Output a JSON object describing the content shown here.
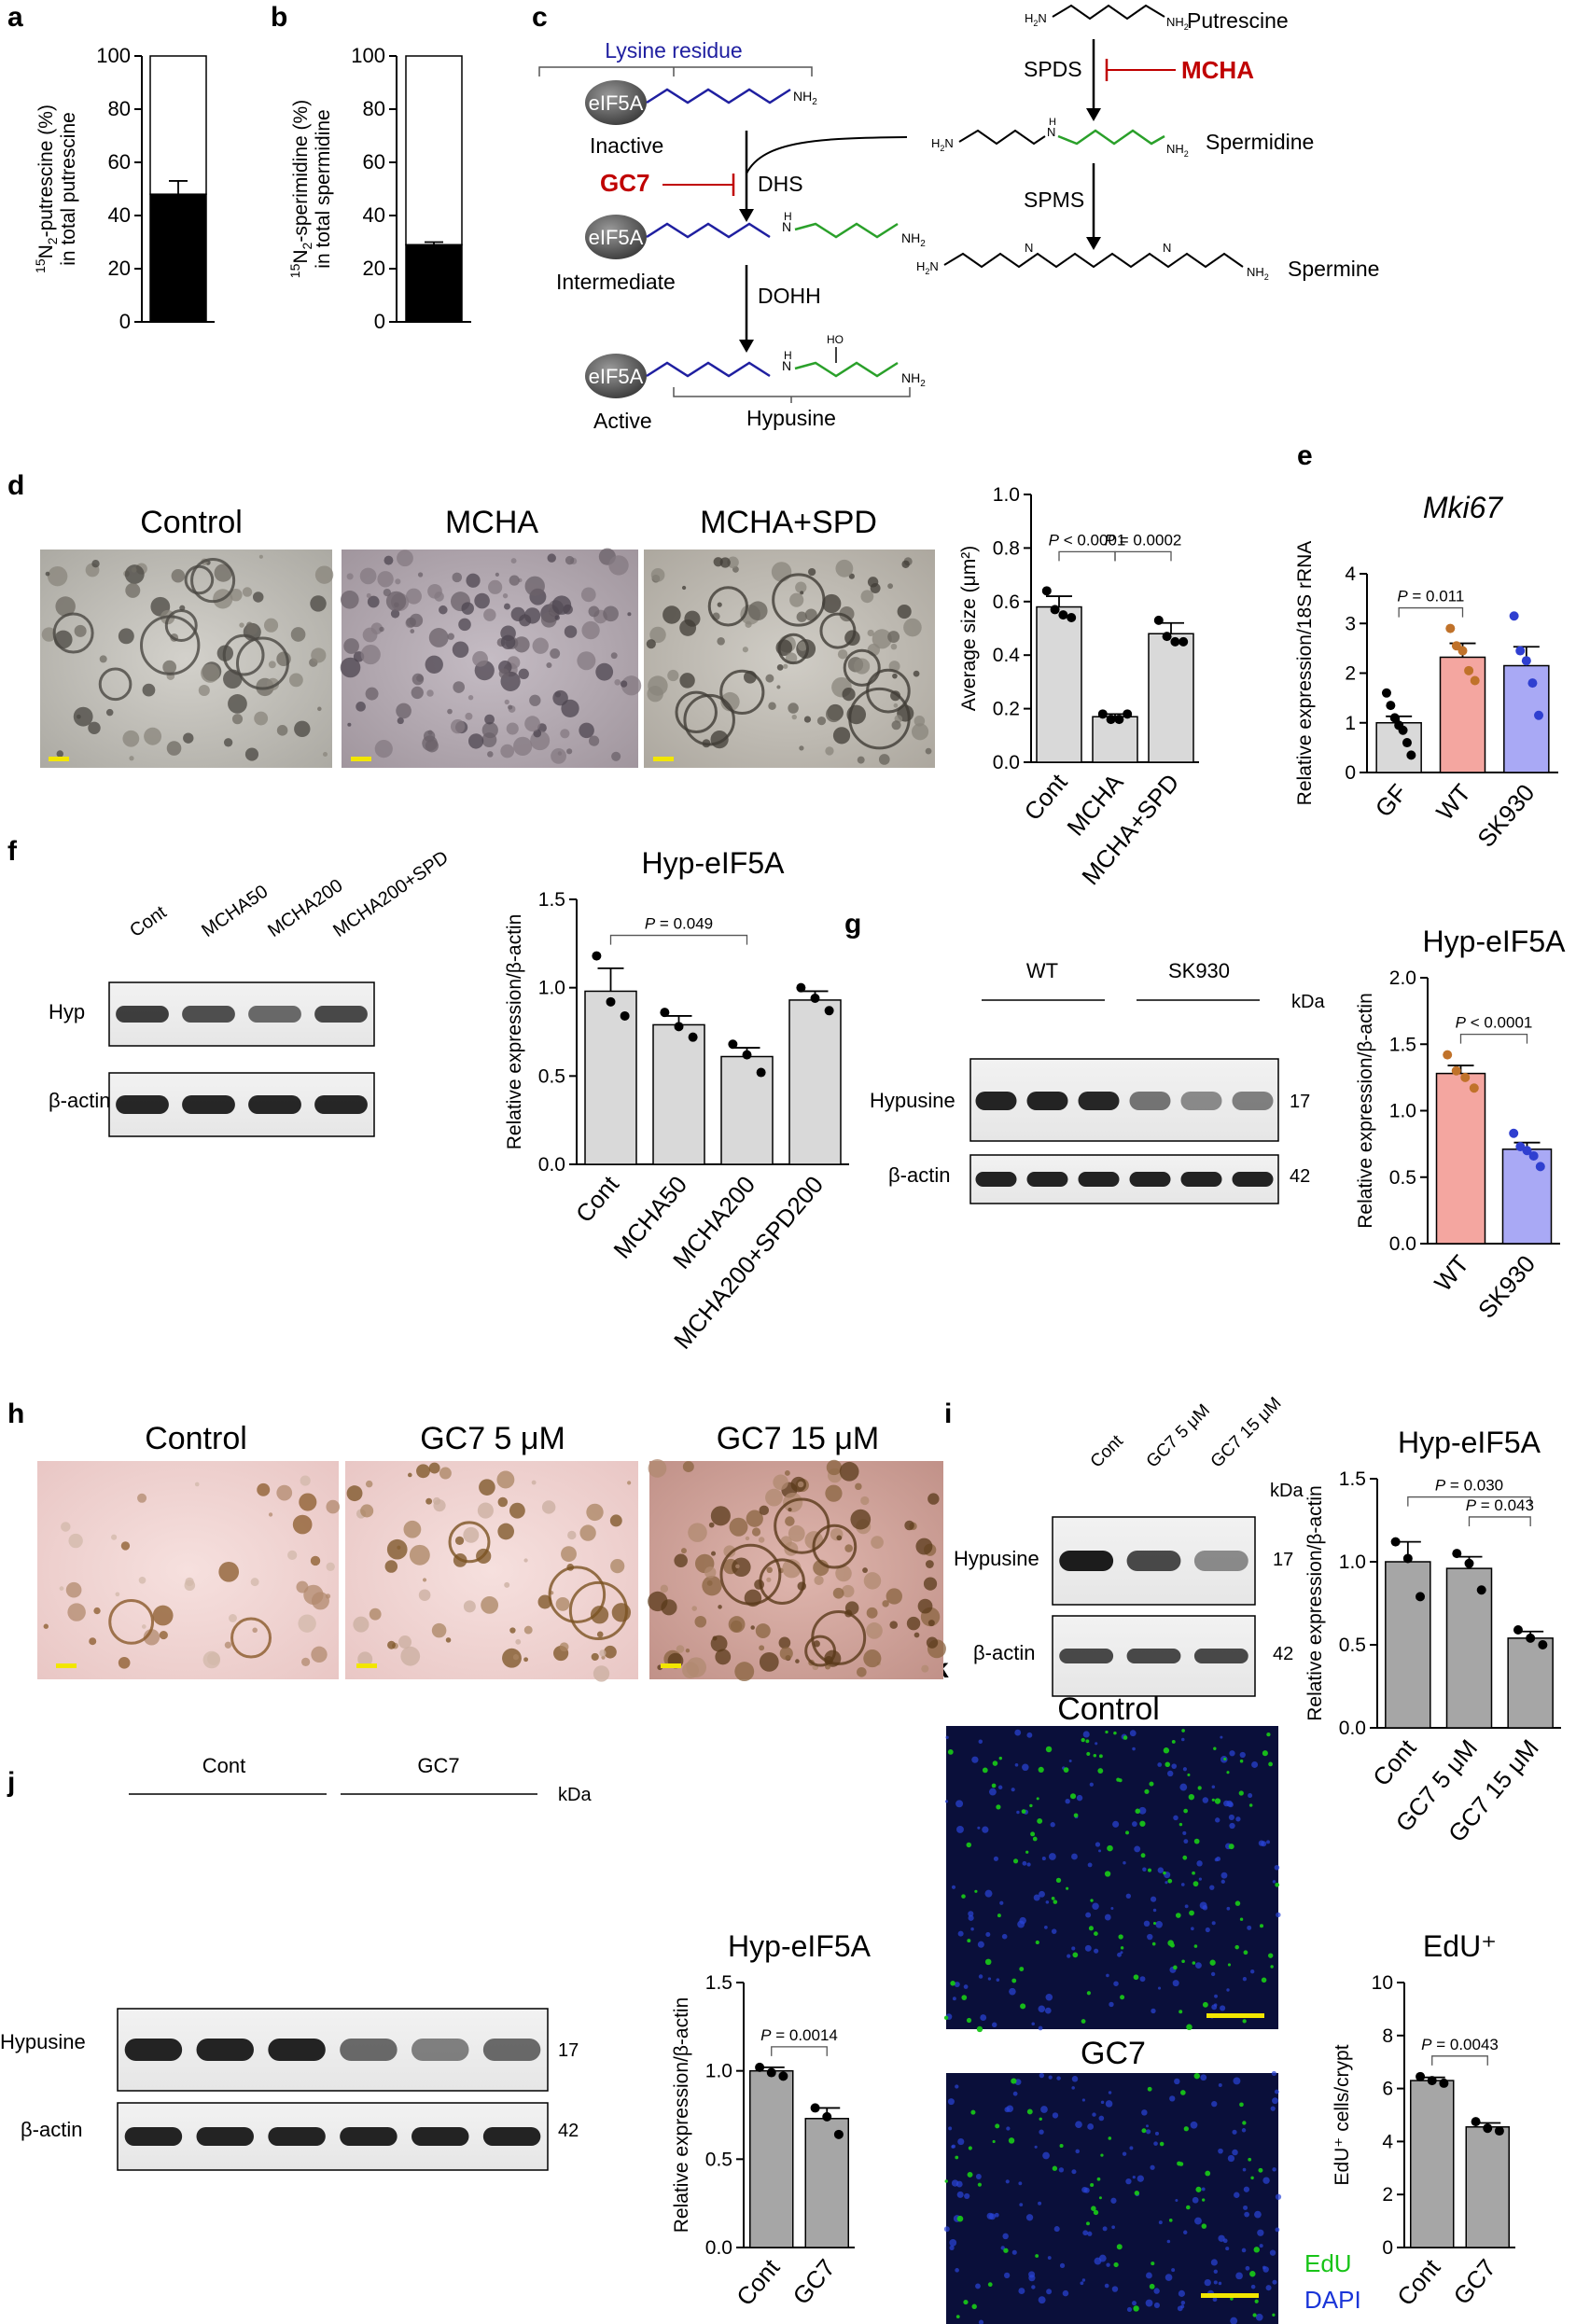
{
  "panel_labels": {
    "a": "a",
    "b": "b",
    "c": "c",
    "d": "d",
    "e": "e",
    "f": "f",
    "g": "g",
    "h": "h",
    "i": "i",
    "j": "j",
    "k": "k"
  },
  "colors": {
    "bar_gray": "#d9d9d9",
    "bar_gray_dark": "#a6a6a6",
    "wt_fill": "#f4a6a0",
    "wt_dot": "#c0722a",
    "sk930_fill": "#a9a9f5",
    "sk930_dot": "#2f3fd0",
    "lysine_blue": "#1f1fa0",
    "spermidine_green": "#2aa02a",
    "inhibitor_red": "#c00000",
    "edu_green": "#18c418",
    "dapi_blue": "#1a35d8",
    "scale_yellow": "#f2e600"
  },
  "pathway": {
    "lysine_residue": "Lysine residue",
    "eif5a": "eIF5A",
    "nh2": "NH",
    "nh2_sub": "2",
    "inactive": "Inactive",
    "intermediate": "Intermediate",
    "active": "Active",
    "hypusine": "Hypusine",
    "dhs": "DHS",
    "dohh": "DOHH",
    "gc7": "GC7",
    "mcha": "MCHA",
    "spds": "SPDS",
    "spms": "SPMS",
    "putrescine": "Putrescine",
    "spermidine": "Spermidine",
    "spermine": "Spermine",
    "h2n": "H",
    "h2n_sub": "2",
    "h2n_n": "N",
    "n": "N",
    "h": "H",
    "ho": "HO"
  },
  "images": {
    "d": {
      "titles": [
        "Control",
        "MCHA",
        "MCHA+SPD"
      ]
    },
    "h": {
      "titles": [
        "Control",
        "GC7 5 μM",
        "GC7 15 μM"
      ]
    },
    "k": {
      "titles": [
        "Control",
        "GC7"
      ],
      "legend": [
        "EdU",
        "DAPI"
      ]
    }
  },
  "blots": {
    "f": {
      "lanes": [
        "Cont",
        "MCHA50",
        "MCHA200",
        "MCHA200+SPD"
      ],
      "rows": [
        "Hyp",
        "β-actin"
      ]
    },
    "g": {
      "groups": [
        "WT",
        "SK930"
      ],
      "rows": [
        "Hypusine",
        "β-actin"
      ],
      "kda_label": "kDa",
      "kda": [
        "17",
        "42"
      ]
    },
    "i": {
      "lanes": [
        "Cont",
        "GC7 5 μM",
        "GC7 15 μM"
      ],
      "rows": [
        "Hypusine",
        "β-actin"
      ],
      "kda_label": "kDa",
      "kda": [
        "17",
        "42"
      ]
    },
    "j": {
      "groups": [
        "Cont",
        "GC7"
      ],
      "rows": [
        "Hypusine",
        "β-actin"
      ],
      "kda_label": "kDa",
      "kda": [
        "17",
        "42"
      ]
    }
  },
  "chart_data": [
    {
      "id": "a",
      "type": "bar",
      "categories": [
        ""
      ],
      "values": [
        48
      ],
      "error": [
        5
      ],
      "ylim": [
        0,
        100
      ],
      "yticks": [
        0,
        20,
        40,
        60,
        80,
        100
      ],
      "ylabel_lines": [
        "15N2-putrescine (%)",
        "in total putrescine"
      ],
      "ylabel_sup": "15",
      "ylabel_rest1": "N",
      "ylabel_sub": "2",
      "ylabel_rest2": "-putrescine (%)",
      "ylabel_line2": "in total putrescine"
    },
    {
      "id": "b",
      "type": "bar",
      "categories": [
        ""
      ],
      "values": [
        29
      ],
      "error": [
        1
      ],
      "ylim": [
        0,
        100
      ],
      "yticks": [
        0,
        20,
        40,
        60,
        80,
        100
      ],
      "ylabel_sup": "15",
      "ylabel_rest1": "N",
      "ylabel_sub": "2",
      "ylabel_rest2": "-sperimidine (%)",
      "ylabel_line2": "in total spermidine"
    },
    {
      "id": "d",
      "type": "bar",
      "categories": [
        "Cont",
        "MCHA",
        "MCHA+SPD"
      ],
      "values": [
        0.58,
        0.17,
        0.48
      ],
      "error": [
        0.04,
        0.01,
        0.04
      ],
      "points": [
        [
          0.64,
          0.57,
          0.55,
          0.54
        ],
        [
          0.18,
          0.16,
          0.16,
          0.18
        ],
        [
          0.53,
          0.47,
          0.45,
          0.45
        ]
      ],
      "ylim": [
        0,
        1.0
      ],
      "yticks": [
        "0.0",
        "0.2",
        "0.4",
        "0.6",
        "0.8",
        "1.0"
      ],
      "ylabel": "Average size (μm²)",
      "comparisons": [
        {
          "from": 0,
          "to": 1,
          "label": "P < 0.0001"
        },
        {
          "from": 1,
          "to": 2,
          "label": "P = 0.0002"
        }
      ]
    },
    {
      "id": "e",
      "type": "bar",
      "title": "Mki67",
      "categories": [
        "GF",
        "WT",
        "SK930"
      ],
      "values": [
        1.0,
        2.32,
        2.15
      ],
      "error": [
        0.13,
        0.28,
        0.38
      ],
      "points": [
        [
          1.6,
          1.35,
          1.1,
          0.95,
          0.85,
          0.6,
          0.35
        ],
        [
          2.9,
          2.55,
          2.45,
          2.05,
          1.85
        ],
        [
          3.15,
          2.45,
          2.25,
          1.8,
          1.15
        ]
      ],
      "ylim": [
        0,
        4
      ],
      "yticks": [
        "0",
        "1",
        "2",
        "3",
        "4"
      ],
      "ylabel": "Relative expression/18S rRNA",
      "comparisons": [
        {
          "from": 0,
          "to": 1,
          "label": "P = 0.011"
        }
      ]
    },
    {
      "id": "f",
      "type": "bar",
      "title": "Hyp-eIF5A",
      "categories": [
        "Cont",
        "MCHA50",
        "MCHA200",
        "MCHA200+SPD200"
      ],
      "values": [
        0.98,
        0.79,
        0.61,
        0.93
      ],
      "error": [
        0.13,
        0.05,
        0.05,
        0.05
      ],
      "points": [
        [
          1.18,
          0.92,
          0.84
        ],
        [
          0.86,
          0.78,
          0.72
        ],
        [
          0.68,
          0.62,
          0.52
        ],
        [
          1.0,
          0.94,
          0.87
        ]
      ],
      "ylim": [
        0,
        1.5
      ],
      "yticks": [
        "0.0",
        "0.5",
        "1.0",
        "1.5"
      ],
      "ylabel": "Relative expression/β-actin",
      "comparisons": [
        {
          "from": 0,
          "to": 2,
          "label": "P = 0.049"
        }
      ]
    },
    {
      "id": "g",
      "type": "bar",
      "title": "Hyp-eIF5A",
      "categories": [
        "WT",
        "SK930"
      ],
      "values": [
        1.28,
        0.71
      ],
      "error": [
        0.06,
        0.05
      ],
      "points": [
        [
          1.42,
          1.3,
          1.25,
          1.17
        ],
        [
          0.83,
          0.73,
          0.7,
          0.66,
          0.58
        ]
      ],
      "ylim": [
        0,
        2.0
      ],
      "yticks": [
        "0.0",
        "0.5",
        "1.0",
        "1.5",
        "2.0"
      ],
      "ylabel": "Relative expression/β-actin",
      "comparisons": [
        {
          "from": 0,
          "to": 1,
          "label": "P < 0.0001"
        }
      ]
    },
    {
      "id": "i",
      "type": "bar",
      "title": "Hyp-eIF5A",
      "categories": [
        "Cont",
        "GC7 5 μM",
        "GC7  15 μM"
      ],
      "values": [
        1.0,
        0.96,
        0.54
      ],
      "error": [
        0.12,
        0.07,
        0.04
      ],
      "points": [
        [
          1.12,
          1.02,
          0.79
        ],
        [
          1.05,
          0.99,
          0.83
        ],
        [
          0.59,
          0.54,
          0.5
        ]
      ],
      "ylim": [
        0,
        1.5
      ],
      "yticks": [
        "0.0",
        "0.5",
        "1.0",
        "1.5"
      ],
      "ylabel": "Relative expression/β-actin",
      "comparisons": [
        {
          "from": 0,
          "to": 2,
          "label": "P = 0.030"
        },
        {
          "from": 1,
          "to": 2,
          "label": "P = 0.043"
        }
      ]
    },
    {
      "id": "j",
      "type": "bar",
      "title": "Hyp-eIF5A",
      "categories": [
        "Cont",
        "GC7"
      ],
      "values": [
        1.0,
        0.73
      ],
      "error": [
        0.02,
        0.06
      ],
      "points": [
        [
          1.02,
          0.99,
          0.97
        ],
        [
          0.79,
          0.74,
          0.64
        ]
      ],
      "ylim": [
        0,
        1.5
      ],
      "yticks": [
        "0.0",
        "0.5",
        "1.0",
        "1.5"
      ],
      "ylabel": "Relative expression/β-actin",
      "comparisons": [
        {
          "from": 0,
          "to": 1,
          "label": "P = 0.0014"
        }
      ]
    },
    {
      "id": "k",
      "type": "bar",
      "title": "EdU⁺",
      "categories": [
        "Cont",
        "GC7"
      ],
      "values": [
        6.3,
        4.55
      ],
      "error": [
        0.12,
        0.15
      ],
      "points": [
        [
          6.45,
          6.3,
          6.2
        ],
        [
          4.75,
          4.5,
          4.4
        ]
      ],
      "ylim": [
        0,
        10
      ],
      "yticks": [
        "0",
        "2",
        "4",
        "6",
        "8",
        "10"
      ],
      "ylabel": "EdU⁺ cells/crypt",
      "comparisons": [
        {
          "from": 0,
          "to": 1,
          "label": "P = 0.0043"
        }
      ]
    }
  ]
}
